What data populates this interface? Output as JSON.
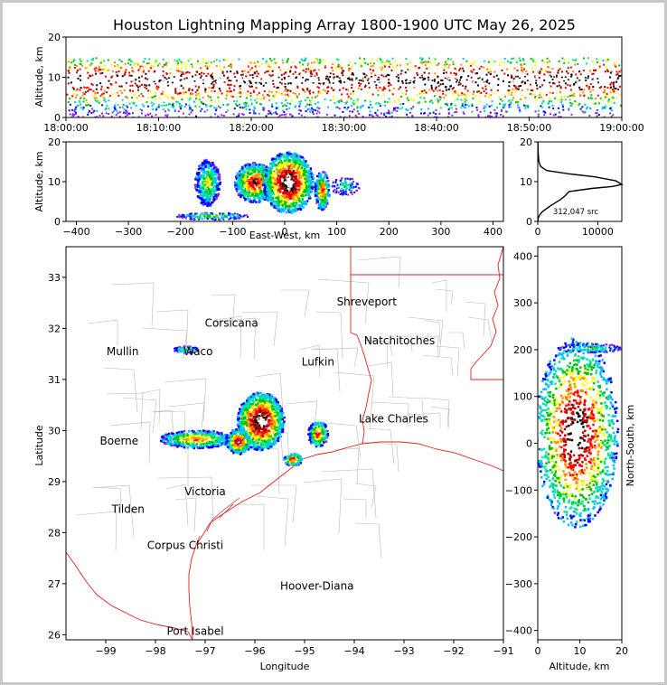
{
  "figure_title": "Houston Lightning Mapping Array 1800-1900 UTC May 26, 2025",
  "colors": {
    "map_border_red": "#e02020",
    "county_line": "#b8b8b8",
    "label_orange": "#ff8c1a",
    "label_blue": "#2222ff",
    "label_green": "#33cc33"
  },
  "colormap": [
    "#8a2be2",
    "#0000ff",
    "#00bfff",
    "#00e5a0",
    "#00c000",
    "#ffff00",
    "#ff8c00",
    "#ff0000",
    "#b00000",
    "#000000",
    "#ffffff"
  ],
  "chart_data": [
    {
      "id": "time-height",
      "type": "heatmap",
      "ylabel": "Altitude, km",
      "ylim": [
        0,
        20
      ],
      "y_ticks": [
        "0",
        "10",
        "20"
      ],
      "x_ticks": [
        "18:00:00",
        "18:10:00",
        "18:20:00",
        "18:30:00",
        "18:40:00",
        "18:50:00",
        "19:00:00"
      ],
      "x_range_minutes": [
        0,
        60
      ],
      "core_altitude_km": [
        6,
        12
      ]
    },
    {
      "id": "east-west-height",
      "type": "heatmap",
      "xlabel": "East-West, km",
      "ylabel": "Altitude, km",
      "xlim": [
        -420,
        420
      ],
      "ylim": [
        0,
        20
      ],
      "x_ticks": [
        "−400",
        "−300",
        "−200",
        "−100",
        "0",
        "100",
        "200",
        "300",
        "400"
      ],
      "y_ticks": [
        "0",
        "10",
        "20"
      ],
      "clusters_km": [
        [
          -150,
          10
        ],
        [
          -60,
          10
        ],
        [
          5,
          10
        ],
        [
          70,
          8
        ]
      ]
    },
    {
      "id": "altitude-histogram",
      "type": "line",
      "annotation": "312,047 src",
      "xlim": [
        0,
        14000
      ],
      "ylim": [
        0,
        20
      ],
      "x_ticks": [
        "0",
        "10000"
      ],
      "y_ticks": [
        "0",
        "10",
        "20"
      ],
      "x": [
        0,
        80,
        250,
        800,
        2200,
        3800,
        4600,
        5200,
        9000,
        12500,
        14000,
        13000,
        9500,
        5000,
        1500,
        500,
        200,
        80,
        20
      ],
      "y": [
        0,
        0.8,
        1.5,
        2.5,
        4,
        5.5,
        6.5,
        7.5,
        8.3,
        8.8,
        9.3,
        10.2,
        11.2,
        12,
        12.8,
        13.8,
        15,
        17,
        20
      ]
    },
    {
      "id": "plan-view-map",
      "type": "heatmap",
      "xlabel": "Longitude",
      "ylabel": "Latitude",
      "xlim": [
        -99.8,
        -91
      ],
      "ylim": [
        25.9,
        33.6
      ],
      "x_ticks": [
        "−99",
        "−98",
        "−97",
        "−96",
        "−95",
        "−94",
        "−93",
        "−92",
        "−91"
      ],
      "y_ticks": [
        "26",
        "27",
        "28",
        "29",
        "30",
        "31",
        "32",
        "33"
      ],
      "clusters_deg": [
        [
          -95.9,
          30.2
        ],
        [
          -97.2,
          29.85
        ],
        [
          -96.35,
          29.8
        ],
        [
          -94.75,
          29.95
        ],
        [
          -95.25,
          29.45
        ],
        [
          -97.4,
          31.6
        ]
      ]
    },
    {
      "id": "north-south-height",
      "type": "heatmap",
      "xlabel": "Altitude, km",
      "ylabel": "North-South, km",
      "xlim": [
        0,
        20
      ],
      "ylim": [
        -420,
        420
      ],
      "x_ticks": [
        "0",
        "10",
        "20"
      ],
      "y_ticks": [
        "400",
        "300",
        "200",
        "100",
        "0",
        "−100",
        "−200",
        "−300",
        "−400"
      ]
    }
  ],
  "map_cities": [
    {
      "name": "Shreveport",
      "lon": -93.75,
      "lat": 32.52,
      "color": "#000000"
    },
    {
      "name": "Corsicana",
      "lon": -96.47,
      "lat": 32.1,
      "color": "#000000"
    },
    {
      "name": "Natchitoches",
      "lon": -93.09,
      "lat": 31.76,
      "color": "#000000"
    },
    {
      "name": "Mullin",
      "lon": -98.66,
      "lat": 31.55,
      "color": "#ff8c1a"
    },
    {
      "name": "Waco",
      "lon": -97.14,
      "lat": 31.55,
      "color": "#000000"
    },
    {
      "name": "Lufkin",
      "lon": -94.73,
      "lat": 31.34,
      "color": "#000000"
    },
    {
      "name": "Lake Charles",
      "lon": -93.21,
      "lat": 30.23,
      "color": "#000000"
    },
    {
      "name": "Boerne",
      "lon": -98.73,
      "lat": 29.79,
      "color": "#000000"
    },
    {
      "name": "Victoria",
      "lon": -97.0,
      "lat": 28.8,
      "color": "#000000"
    },
    {
      "name": "Tilden",
      "lon": -98.55,
      "lat": 28.46,
      "color": "#000000"
    },
    {
      "name": "Corpus Christi",
      "lon": -97.4,
      "lat": 27.75,
      "color": "#000000"
    },
    {
      "name": "Hoover-Diana",
      "lon": -94.75,
      "lat": 26.95,
      "color": "#2222ff"
    },
    {
      "name": "Port Isabel",
      "lon": -97.2,
      "lat": 26.07,
      "color": "#000000"
    }
  ]
}
